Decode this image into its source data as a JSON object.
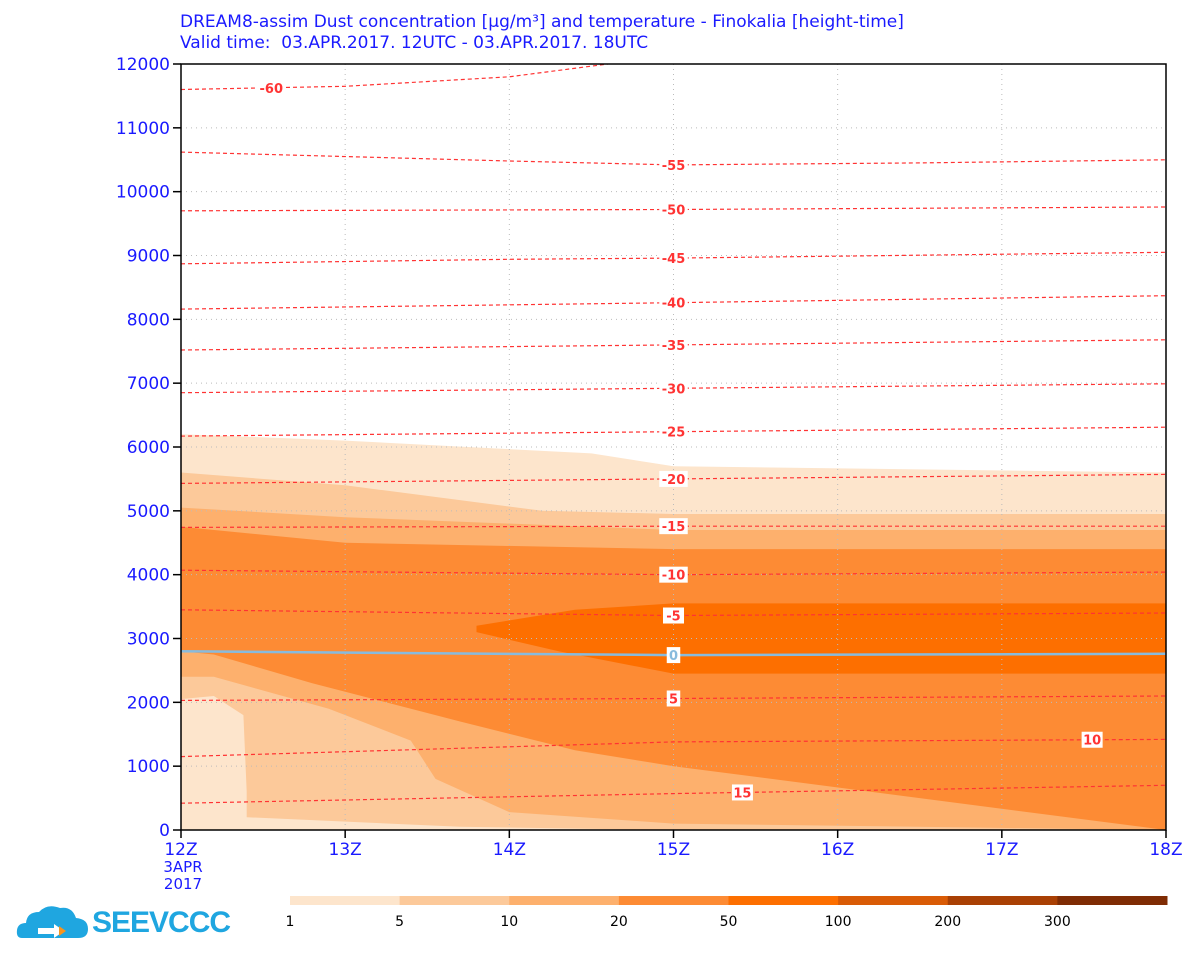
{
  "title_line1": "DREAM8-assim Dust concentration [µg/m³] and temperature - Finokalia [height-time]",
  "title_line2": "Valid time:  03.APR.2017. 12UTC - 03.APR.2017. 18UTC",
  "logo_text": "SEEVCCC",
  "colors": {
    "axis_text": "#1a1aff",
    "isotherm": "#ff3333",
    "freezing_line": "#88bbdd",
    "levels": [
      "#fde5cc",
      "#fcc99a",
      "#fdb06d",
      "#fd8b34",
      "#fd6f00",
      "#d95b06",
      "#a94004",
      "#7f2c04"
    ]
  },
  "chart_data": {
    "type": "heatmap",
    "xlabel": "",
    "ylabel": "",
    "x_ticks": [
      "12Z",
      "13Z",
      "14Z",
      "15Z",
      "16Z",
      "17Z",
      "18Z"
    ],
    "x_date_label": [
      "3APR",
      "2017"
    ],
    "y_ticks": [
      0,
      1000,
      2000,
      3000,
      4000,
      5000,
      6000,
      7000,
      8000,
      9000,
      10000,
      11000,
      12000
    ],
    "xlim": [
      12,
      18
    ],
    "ylim": [
      0,
      12000
    ],
    "colorbar": {
      "ticks": [
        "1",
        "5",
        "10",
        "20",
        "50",
        "100",
        "200",
        "300"
      ]
    },
    "dust_contours": [
      {
        "level": "1",
        "points": [
          [
            12,
            6200
          ],
          [
            13,
            6100
          ],
          [
            14.5,
            5900
          ],
          [
            15,
            5700
          ],
          [
            18,
            5600
          ],
          [
            18,
            0
          ],
          [
            12,
            0
          ]
        ]
      },
      {
        "level": "5",
        "points": [
          [
            12,
            5600
          ],
          [
            13,
            5400
          ],
          [
            14.2,
            5000
          ],
          [
            15,
            4950
          ],
          [
            18,
            4950
          ],
          [
            18,
            0
          ],
          [
            15,
            0
          ],
          [
            13.7,
            50
          ],
          [
            12.4,
            200
          ],
          [
            12.4,
            600
          ],
          [
            12.38,
            1800
          ],
          [
            12.2,
            2100
          ],
          [
            12,
            2050
          ]
        ]
      },
      {
        "level": "10",
        "points": [
          [
            12,
            5050
          ],
          [
            13,
            4900
          ],
          [
            15,
            4700
          ],
          [
            18,
            4700
          ],
          [
            18,
            0
          ],
          [
            15,
            100
          ],
          [
            14,
            280
          ],
          [
            13.55,
            800
          ],
          [
            13.4,
            1400
          ],
          [
            12.9,
            1900
          ],
          [
            12.2,
            2400
          ],
          [
            12,
            2400
          ]
        ]
      },
      {
        "level": "20",
        "points": [
          [
            12,
            4750
          ],
          [
            13,
            4500
          ],
          [
            15,
            4400
          ],
          [
            18,
            4400
          ],
          [
            18,
            0
          ],
          [
            15,
            1000
          ],
          [
            14.4,
            1250
          ],
          [
            13.7,
            1700
          ],
          [
            12.8,
            2300
          ],
          [
            12.2,
            2750
          ],
          [
            12,
            2800
          ]
        ]
      },
      {
        "level": "50",
        "points": [
          [
            13.8,
            3200
          ],
          [
            14.4,
            3450
          ],
          [
            15,
            3550
          ],
          [
            18,
            3550
          ],
          [
            18,
            2450
          ],
          [
            15,
            2450
          ],
          [
            14.3,
            2800
          ],
          [
            13.8,
            3100
          ]
        ]
      }
    ],
    "isotherms": [
      {
        "label": "-60",
        "label_x": 12.55,
        "points": [
          [
            12,
            11600
          ],
          [
            13,
            11650
          ],
          [
            14,
            11800
          ],
          [
            14.6,
            12000
          ]
        ]
      },
      {
        "label": "-55",
        "label_x": 15.0,
        "points": [
          [
            12,
            10620
          ],
          [
            14,
            10480
          ],
          [
            15,
            10420
          ],
          [
            16.5,
            10450
          ],
          [
            18,
            10500
          ]
        ]
      },
      {
        "label": "-50",
        "label_x": 15.0,
        "points": [
          [
            12,
            9700
          ],
          [
            15,
            9720
          ],
          [
            18,
            9760
          ]
        ]
      },
      {
        "label": "-45",
        "label_x": 15.0,
        "points": [
          [
            12,
            8870
          ],
          [
            14,
            8940
          ],
          [
            15,
            8960
          ],
          [
            18,
            9050
          ]
        ]
      },
      {
        "label": "-40",
        "label_x": 15.0,
        "points": [
          [
            12,
            8160
          ],
          [
            15,
            8260
          ],
          [
            18,
            8370
          ]
        ]
      },
      {
        "label": "-35",
        "label_x": 15.0,
        "points": [
          [
            12,
            7520
          ],
          [
            15,
            7600
          ],
          [
            18,
            7680
          ]
        ]
      },
      {
        "label": "-30",
        "label_x": 15.0,
        "points": [
          [
            12,
            6850
          ],
          [
            15,
            6920
          ],
          [
            18,
            6990
          ]
        ]
      },
      {
        "label": "-25",
        "label_x": 15.0,
        "points": [
          [
            12,
            6170
          ],
          [
            15,
            6240
          ],
          [
            18,
            6310
          ]
        ]
      },
      {
        "label": "-20",
        "label_x": 15.0,
        "points": [
          [
            12,
            5430
          ],
          [
            15,
            5500
          ],
          [
            18,
            5570
          ]
        ]
      },
      {
        "label": "-15",
        "label_x": 15.0,
        "points": [
          [
            12,
            4740
          ],
          [
            15,
            4760
          ],
          [
            18,
            4760
          ]
        ]
      },
      {
        "label": "-10",
        "label_x": 15.0,
        "points": [
          [
            12,
            4070
          ],
          [
            15,
            4000
          ],
          [
            18,
            4040
          ]
        ]
      },
      {
        "label": "-5",
        "label_x": 15.0,
        "points": [
          [
            12,
            3450
          ],
          [
            15,
            3360
          ],
          [
            18,
            3400
          ]
        ]
      },
      {
        "label": "5",
        "label_x": 15.0,
        "points": [
          [
            12,
            2030
          ],
          [
            15,
            2060
          ],
          [
            18,
            2100
          ]
        ]
      },
      {
        "label": "10",
        "label_x": 17.55,
        "points": [
          [
            12,
            1150
          ],
          [
            15,
            1380
          ],
          [
            18,
            1420
          ]
        ]
      },
      {
        "label": "15",
        "label_x": 15.42,
        "points": [
          [
            12,
            420
          ],
          [
            15,
            570
          ],
          [
            18,
            700
          ]
        ]
      }
    ],
    "freezing_line": {
      "label": "0",
      "label_x": 15.0,
      "points": [
        [
          12,
          2800
        ],
        [
          15,
          2740
        ],
        [
          18,
          2760
        ]
      ]
    }
  }
}
